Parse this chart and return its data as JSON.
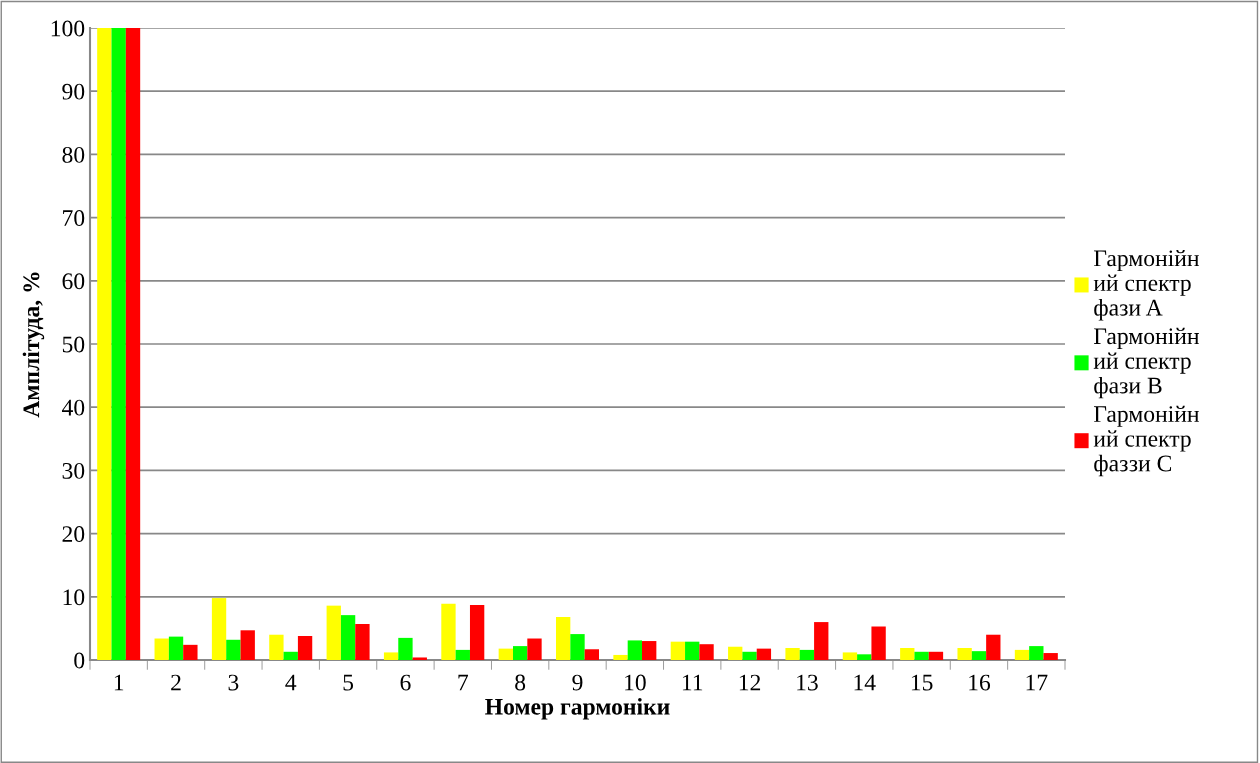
{
  "chart_data": {
    "type": "bar",
    "xlabel": "Номер гармоніки",
    "ylabel": "Амплітуда, %",
    "categories": [
      "1",
      "2",
      "3",
      "4",
      "5",
      "6",
      "7",
      "8",
      "9",
      "10",
      "11",
      "12",
      "13",
      "14",
      "15",
      "16",
      "17"
    ],
    "series": [
      {
        "name": "Гармонійний спектр фази A",
        "color": "#ffff00",
        "values": [
          100,
          3.4,
          9.8,
          4.0,
          8.6,
          1.2,
          8.9,
          1.8,
          6.8,
          0.8,
          2.9,
          2.1,
          1.9,
          1.2,
          1.9,
          1.9,
          1.6
        ]
      },
      {
        "name": "Гармонійний спектр фази B",
        "color": "#00ff00",
        "values": [
          100,
          3.7,
          3.2,
          1.3,
          7.1,
          3.5,
          1.6,
          2.2,
          4.1,
          3.1,
          2.9,
          1.3,
          1.6,
          0.9,
          1.3,
          1.4,
          2.2
        ]
      },
      {
        "name": "Гармонійний спектр фаззи C",
        "color": "#ff0000",
        "values": [
          100,
          2.4,
          4.7,
          3.8,
          5.7,
          0.4,
          8.7,
          3.4,
          1.7,
          3.0,
          2.5,
          1.8,
          6.0,
          5.3,
          1.3,
          4.0,
          1.1
        ]
      }
    ],
    "ylim": [
      0,
      100
    ],
    "yticks": [
      0,
      10,
      20,
      30,
      40,
      50,
      60,
      70,
      80,
      90,
      100
    ],
    "grid": "y",
    "legend": "right"
  }
}
